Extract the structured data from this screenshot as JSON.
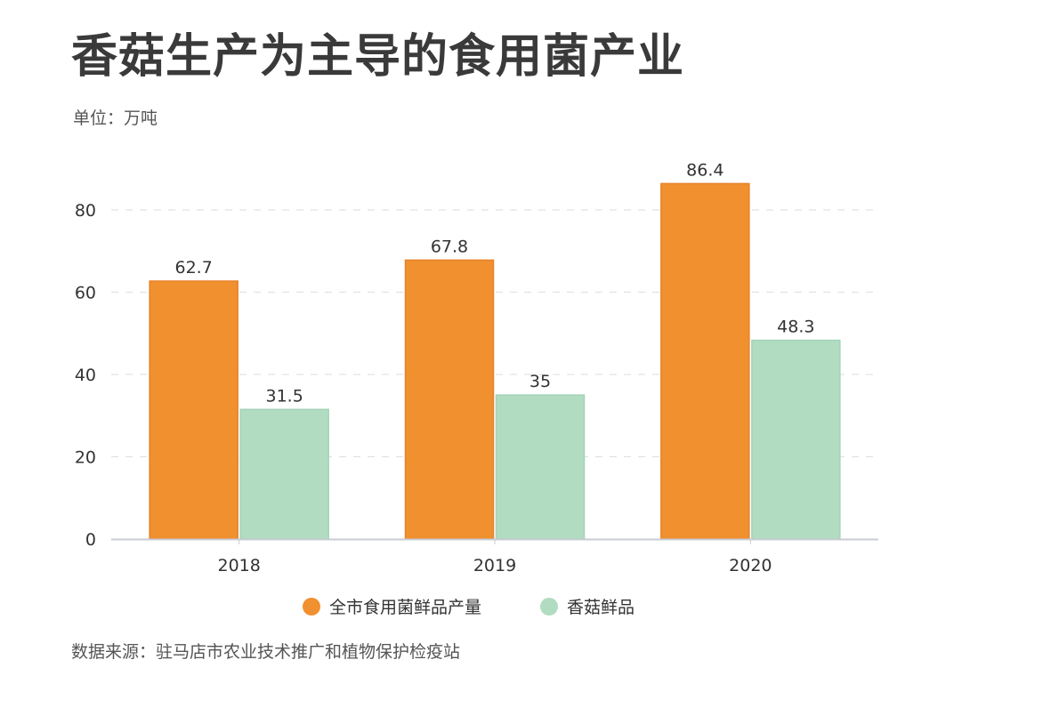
{
  "header": {
    "title": "香菇生产为主导的食用菌产业",
    "unit": "单位：万吨"
  },
  "footer": {
    "source": "数据来源：驻马店市农业技术推广和植物保护检疫站"
  },
  "colors": {
    "series_0": "#f0902f",
    "series_0_border": "#e8822a",
    "series_1": "#b2dcc2",
    "series_1_border": "#a3d3b6",
    "grid": "#dde3ea",
    "axis": "#c8ccd2"
  },
  "chart_data": {
    "type": "bar",
    "title": "香菇生产为主导的食用菌产业",
    "subtitle": "单位：万吨",
    "xlabel": "",
    "ylabel": "",
    "categories": [
      "2018",
      "2019",
      "2020"
    ],
    "series": [
      {
        "name": "全市食用菌鲜品产量",
        "values": [
          62.7,
          67.8,
          86.4
        ],
        "labels": [
          "62.7",
          "67.8",
          "86.4"
        ]
      },
      {
        "name": "香菇鲜品",
        "values": [
          31.5,
          35,
          48.3
        ],
        "labels": [
          "31.5",
          "35",
          "48.3"
        ]
      }
    ],
    "ylim": [
      0,
      80
    ],
    "yticks": [
      0,
      20,
      40,
      60,
      80
    ],
    "ytick_labels": [
      "0",
      "20",
      "40",
      "60",
      "80"
    ],
    "grid": true,
    "grid_style": "dashed",
    "legend_position": "bottom-center",
    "source": "数据来源：驻马店市农业技术推广和植物保护检疫站"
  }
}
